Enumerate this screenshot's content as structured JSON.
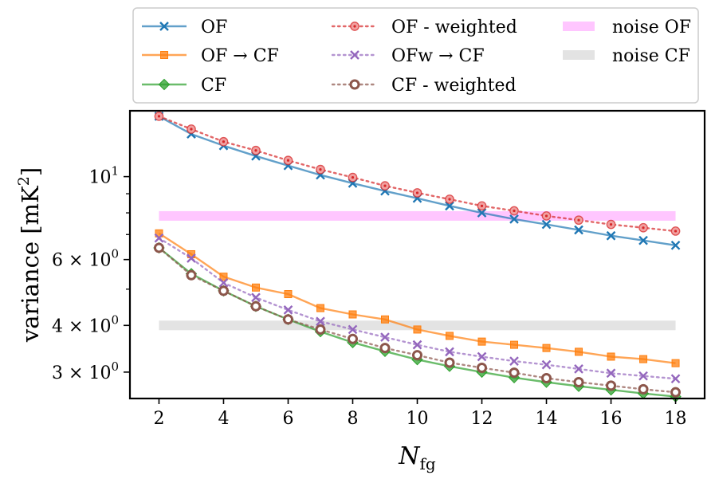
{
  "chart_data": {
    "type": "line",
    "xlabel": "N",
    "xlabel_sub": "fg",
    "ylabel_main": "variance [mK",
    "ylabel_sup": "2",
    "ylabel_close": "]",
    "yscale": "log",
    "xlim": [
      1.1,
      18.9
    ],
    "ylim": [
      2.55,
      15.0
    ],
    "x_ticks": [
      2,
      4,
      6,
      8,
      10,
      12,
      14,
      16,
      18
    ],
    "x_tick_labels": [
      "2",
      "4",
      "6",
      "8",
      "10",
      "12",
      "14",
      "16",
      "18"
    ],
    "y_ticks": [
      {
        "value": 10,
        "base": "10",
        "exp": "1",
        "mult": ""
      },
      {
        "value": 6,
        "base": "10",
        "exp": "0",
        "mult": "6 × "
      },
      {
        "value": 4,
        "base": "10",
        "exp": "0",
        "mult": "4 × "
      },
      {
        "value": 3,
        "base": "10",
        "exp": "0",
        "mult": "3 × "
      }
    ],
    "y_minor_ticks": [
      5,
      7,
      8,
      9
    ],
    "x": [
      2,
      3,
      4,
      5,
      6,
      7,
      8,
      9,
      10,
      11,
      12,
      13,
      14,
      15,
      16,
      17,
      18
    ],
    "series": [
      {
        "name": "OF",
        "color": "#1f77b4",
        "dash": "solid",
        "marker": "x",
        "values": [
          14.5,
          13.0,
          12.1,
          11.35,
          10.7,
          10.1,
          9.6,
          9.15,
          8.75,
          8.35,
          8.0,
          7.7,
          7.45,
          7.2,
          6.95,
          6.75,
          6.55
        ]
      },
      {
        "name": "OF → CF",
        "color": "#ff7f0e",
        "dash": "solid",
        "marker": "square",
        "values": [
          7.05,
          6.2,
          5.4,
          5.05,
          4.85,
          4.45,
          4.28,
          4.15,
          3.9,
          3.75,
          3.62,
          3.55,
          3.48,
          3.4,
          3.3,
          3.25,
          3.17
        ]
      },
      {
        "name": "CF",
        "color": "#2ca02c",
        "dash": "solid",
        "marker": "diamond",
        "values": [
          6.45,
          5.5,
          4.95,
          4.5,
          4.15,
          3.85,
          3.6,
          3.41,
          3.24,
          3.11,
          3.0,
          2.9,
          2.82,
          2.75,
          2.69,
          2.63,
          2.58
        ]
      },
      {
        "name": "OF - weighted",
        "color": "#d62728",
        "dash": "dotted",
        "marker": "dot-circle",
        "values": [
          14.5,
          13.4,
          12.4,
          11.75,
          11.05,
          10.45,
          9.95,
          9.45,
          9.05,
          8.7,
          8.35,
          8.1,
          7.85,
          7.65,
          7.45,
          7.3,
          7.15
        ]
      },
      {
        "name": "OFw → CF",
        "color": "#9467bd",
        "dash": "dotted",
        "marker": "x",
        "values": [
          6.85,
          6.05,
          5.2,
          4.75,
          4.4,
          4.1,
          3.9,
          3.72,
          3.55,
          3.4,
          3.3,
          3.21,
          3.14,
          3.06,
          2.98,
          2.93,
          2.88
        ]
      },
      {
        "name": "CF - weighted",
        "color": "#8c564b",
        "dash": "dotted",
        "marker": "ring",
        "values": [
          6.45,
          5.45,
          4.95,
          4.5,
          4.15,
          3.9,
          3.68,
          3.48,
          3.33,
          3.18,
          3.08,
          2.99,
          2.89,
          2.82,
          2.76,
          2.7,
          2.65
        ]
      }
    ],
    "bands": [
      {
        "name": "noise OF",
        "color": "#ff80ff",
        "opacity": 0.45,
        "x": [
          2,
          18
        ],
        "value": 7.85
      },
      {
        "name": "noise CF",
        "color": "#c0c0c0",
        "opacity": 0.45,
        "x": [
          2,
          18
        ],
        "value": 4.0
      }
    ],
    "legend_position": "above-plot"
  }
}
